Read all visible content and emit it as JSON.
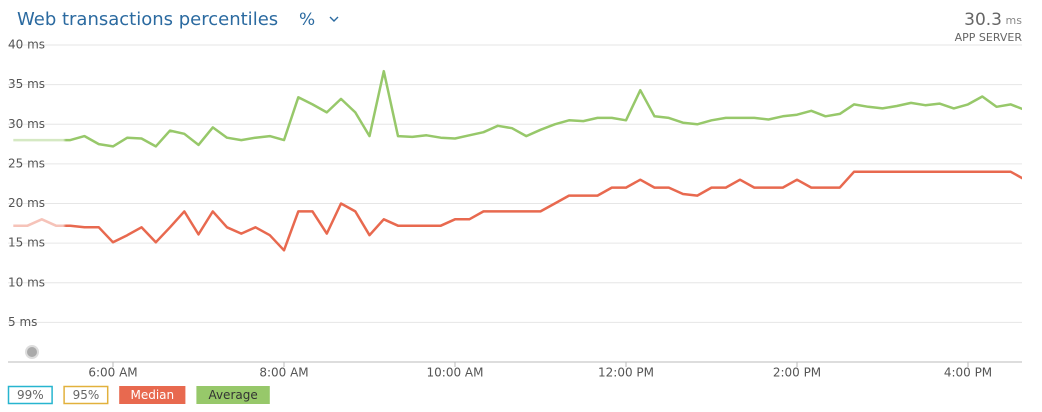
{
  "chart_data": {
    "type": "line",
    "title": "Web transactions percentiles",
    "mode": "%",
    "summary": {
      "value": "30.3",
      "unit": "ms",
      "label": "APP SERVER"
    },
    "categories": [
      null,
      null,
      null,
      null,
      null,
      null,
      null,
      "6:00 AM",
      null,
      null,
      null,
      null,
      null,
      null,
      null,
      null,
      null,
      null,
      null,
      "8:00 AM",
      null,
      null,
      null,
      null,
      null,
      null,
      null,
      null,
      null,
      null,
      null,
      "10:00 AM",
      null,
      null,
      null,
      null,
      null,
      null,
      null,
      null,
      null,
      null,
      null,
      "12:00 PM",
      null,
      null,
      null,
      null,
      null,
      null,
      null,
      null,
      null,
      null,
      null,
      "2:00 PM",
      null,
      null,
      null,
      null,
      null,
      null,
      null,
      null,
      null,
      null,
      null,
      "4:00 PM",
      null,
      null,
      null,
      null
    ],
    "ylim": [
      0,
      40
    ],
    "yticks": [
      {
        "value": 5,
        "label": "5 ms"
      },
      {
        "value": 10,
        "label": "10 ms"
      },
      {
        "value": 15,
        "label": "15 ms"
      },
      {
        "value": 20,
        "label": "20 ms"
      },
      {
        "value": 25,
        "label": "25 ms"
      },
      {
        "value": 30,
        "label": "30 ms"
      },
      {
        "value": 35,
        "label": "35 ms"
      },
      {
        "value": 40,
        "label": "40 ms"
      }
    ],
    "grid": true,
    "hidden_series": [
      {
        "name": "99%",
        "color": "#27b5cf"
      },
      {
        "name": "95%",
        "color": "#e2b13c"
      }
    ],
    "series": [
      {
        "name": "Median",
        "color": "#e8694f",
        "values": [
          17.2,
          17.2,
          18,
          17.2,
          17.2,
          17,
          17,
          15.1,
          16,
          17,
          15.1,
          17,
          19,
          16.1,
          19,
          17,
          16.2,
          17,
          16,
          14.1,
          19,
          19,
          16.2,
          20,
          19,
          16,
          18,
          17.2,
          17.2,
          17.2,
          17.2,
          18,
          18,
          19,
          19,
          19,
          19,
          19,
          20,
          21,
          21,
          21,
          22,
          22,
          23,
          22,
          22,
          21.2,
          21,
          22,
          22,
          23,
          22,
          22,
          22,
          23,
          22,
          22,
          22,
          24,
          24,
          24,
          24,
          24,
          24,
          24,
          24,
          24,
          24,
          24,
          24,
          23
        ]
      },
      {
        "name": "Average",
        "color": "#97c86a",
        "values": [
          28,
          28,
          28,
          28,
          28,
          28.5,
          27.5,
          27.2,
          28.3,
          28.2,
          27.2,
          29.2,
          28.8,
          27.4,
          29.6,
          28.3,
          28,
          28.3,
          28.5,
          28,
          33.4,
          32.5,
          31.5,
          33.2,
          31.5,
          28.5,
          36.7,
          28.5,
          28.4,
          28.6,
          28.3,
          28.2,
          28.6,
          29,
          29.8,
          29.5,
          28.5,
          29.3,
          30,
          30.5,
          30.4,
          30.8,
          30.8,
          30.5,
          34.3,
          31,
          30.8,
          30.2,
          30,
          30.5,
          30.8,
          30.8,
          30.8,
          30.6,
          31,
          31.2,
          31.7,
          31,
          31.3,
          32.5,
          32.2,
          32,
          32.3,
          32.7,
          32.4,
          32.6,
          32,
          32.5,
          33.5,
          32.2,
          32.5,
          31.8
        ]
      }
    ]
  }
}
